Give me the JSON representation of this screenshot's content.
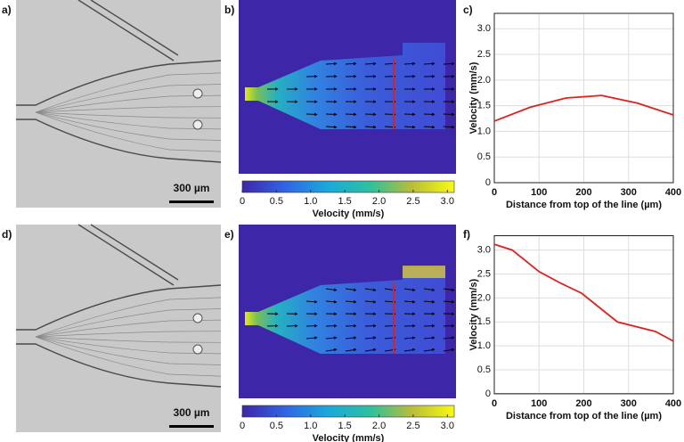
{
  "micrographs": [
    {
      "label": "a)",
      "scale_bar": "300 µm"
    },
    {
      "label": "d)",
      "scale_bar": "300 µm"
    }
  ],
  "simulations": [
    {
      "label": "b)"
    },
    {
      "label": "e)"
    }
  ],
  "colorbar": {
    "label": "Velocity (mm/s)",
    "lim": [
      0,
      3.1
    ],
    "ticks": [
      0,
      0.5,
      {
        "value": 1,
        "label": "1.0"
      },
      {
        "value": 1.5,
        "label": "1.5"
      },
      {
        "value": 2,
        "label": "2.0"
      },
      {
        "value": 2.5,
        "label": "2.5"
      },
      {
        "value": 3,
        "label": "3.0"
      }
    ]
  },
  "chart_data": [
    {
      "type": "line",
      "label": "c)",
      "x_label": "Distance from top of the line (µm)",
      "y_label": "Velocity (mm/s)",
      "x": [
        0,
        80,
        160,
        240,
        320,
        400
      ],
      "values": [
        1.2,
        1.47,
        1.65,
        1.7,
        1.55,
        1.32
      ],
      "color": "#e0201b",
      "xlim": [
        0,
        400
      ],
      "ylim": [
        0,
        3.3
      ],
      "xticks": [
        0,
        100,
        200,
        300,
        400
      ],
      "yticks": [
        0,
        0.5,
        {
          "value": 1,
          "label": "1.0"
        },
        {
          "value": 1.5,
          "label": "1.5"
        },
        {
          "value": 2,
          "label": "2.0"
        },
        {
          "value": 2.5,
          "label": "2.5"
        },
        {
          "value": 3,
          "label": "3.0"
        }
      ],
      "grid": true
    },
    {
      "type": "line",
      "label": "f)",
      "x_label": "Distance from top of the line (µm)",
      "y_label": "Velocity (mm/s)",
      "x": [
        0,
        40,
        100,
        150,
        195,
        275,
        360,
        400
      ],
      "values": [
        3.12,
        3.0,
        2.55,
        2.3,
        2.1,
        1.5,
        1.3,
        1.1
      ],
      "color": "#e0201b",
      "xlim": [
        0,
        400
      ],
      "ylim": [
        0,
        3.3
      ],
      "xticks": [
        0,
        100,
        200,
        300,
        400
      ],
      "yticks": [
        0,
        0.5,
        {
          "value": 1,
          "label": "1.0"
        },
        {
          "value": 1.5,
          "label": "1.5"
        },
        {
          "value": 2,
          "label": "2.0"
        },
        {
          "value": 2.5,
          "label": "2.5"
        },
        {
          "value": 3,
          "label": "3.0"
        }
      ],
      "grid": true
    }
  ]
}
